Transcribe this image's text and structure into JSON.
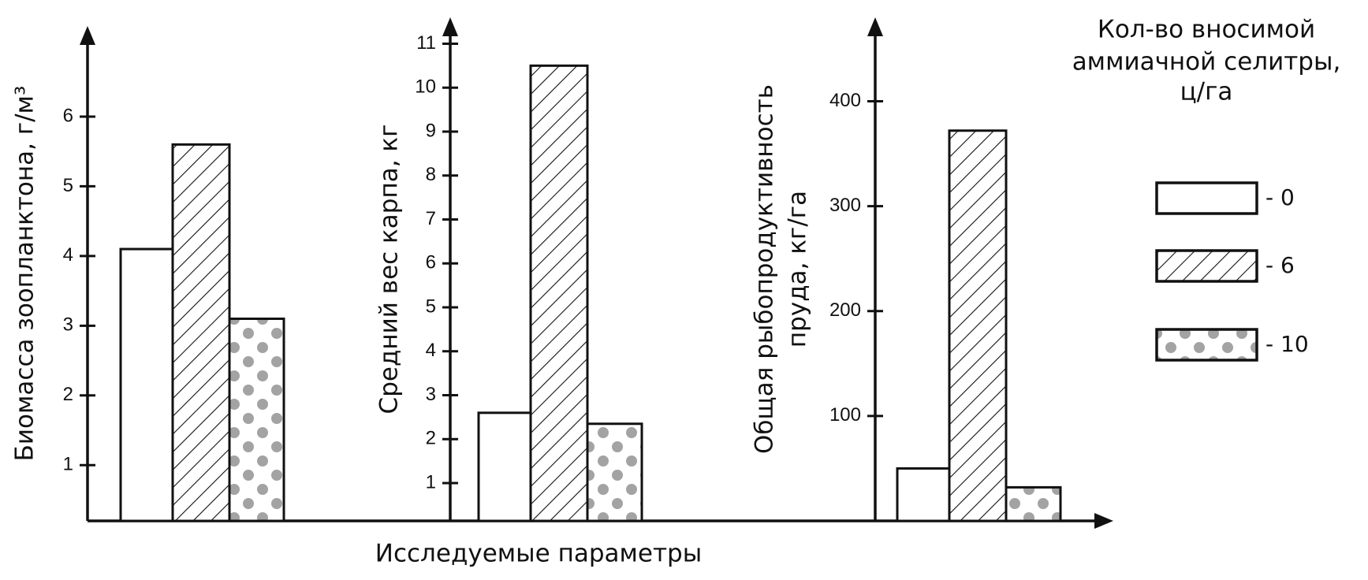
{
  "xlabel": "Исследуемые параметры",
  "legend": {
    "title": [
      "Кол-во вносимой",
      "аммиачной селитры,",
      "ц/га"
    ],
    "items": [
      {
        "name": "- 0",
        "pattern": "none"
      },
      {
        "name": "- 6",
        "pattern": "hatch"
      },
      {
        "name": "- 10",
        "pattern": "dots"
      }
    ]
  },
  "chart_data": [
    {
      "type": "bar",
      "ylabel": [
        "Биомасса зоопланктона, г/м³"
      ],
      "values": [
        4.1,
        5.6,
        3.1
      ],
      "ylim": [
        0.2,
        7.3
      ],
      "yticks": [
        1,
        2,
        3,
        4,
        5,
        6
      ]
    },
    {
      "type": "bar",
      "ylabel": [
        "Средний вес карпа, кг"
      ],
      "values": [
        2.6,
        10.5,
        2.35
      ],
      "ylim": [
        0.14,
        11.6
      ],
      "yticks": [
        1,
        2,
        3,
        4,
        5,
        6,
        7,
        8,
        9,
        10,
        11
      ]
    },
    {
      "type": "bar",
      "ylabel": [
        "Общая рыбопродуктивность",
        "пруда, кг/га"
      ],
      "values": [
        50,
        372,
        32
      ],
      "ylim": [
        0,
        480
      ],
      "yticks": [
        100,
        200,
        300,
        400
      ]
    }
  ]
}
